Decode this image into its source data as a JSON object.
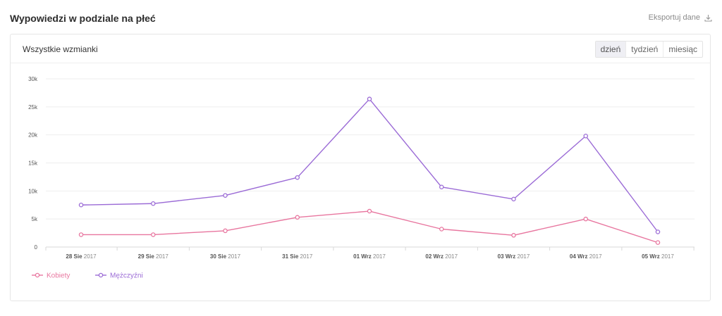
{
  "header": {
    "title": "Wypowiedzi w podziale na płeć",
    "export_label": "Eksportuj dane"
  },
  "card": {
    "title": "Wszystkie wzmianki",
    "granularity": {
      "options": [
        "dzień",
        "tydzień",
        "miesiąc"
      ],
      "selected": "dzień"
    }
  },
  "colors": {
    "kobiety": "#e8769f",
    "mezczyzni": "#9b6bd6",
    "grid": "#eeeeee",
    "axis": "#d8d8d8"
  },
  "chart_data": {
    "type": "line",
    "title": "",
    "xlabel": "",
    "ylabel": "",
    "ylim": [
      0,
      30000
    ],
    "y_ticks": [
      0,
      5000,
      10000,
      15000,
      20000,
      25000,
      30000
    ],
    "y_tick_labels": [
      "0",
      "5k",
      "10k",
      "15k",
      "20k",
      "25k",
      "30k"
    ],
    "categories": [
      {
        "day": "28 Sie",
        "year": "2017"
      },
      {
        "day": "29 Sie",
        "year": "2017"
      },
      {
        "day": "30 Sie",
        "year": "2017"
      },
      {
        "day": "31 Sie",
        "year": "2017"
      },
      {
        "day": "01 Wrz",
        "year": "2017"
      },
      {
        "day": "02 Wrz",
        "year": "2017"
      },
      {
        "day": "03 Wrz",
        "year": "2017"
      },
      {
        "day": "04 Wrz",
        "year": "2017"
      },
      {
        "day": "05 Wrz",
        "year": "2017"
      }
    ],
    "series": [
      {
        "name": "Kobiety",
        "color_key": "kobiety",
        "values": [
          2200,
          2200,
          2900,
          5300,
          6400,
          3200,
          2100,
          5000,
          800
        ]
      },
      {
        "name": "Mężczyźni",
        "color_key": "mezczyzni",
        "values": [
          7500,
          7750,
          9200,
          12400,
          26400,
          10700,
          8550,
          19800,
          2700
        ]
      }
    ],
    "grid": true,
    "legend": "bottom-left"
  }
}
